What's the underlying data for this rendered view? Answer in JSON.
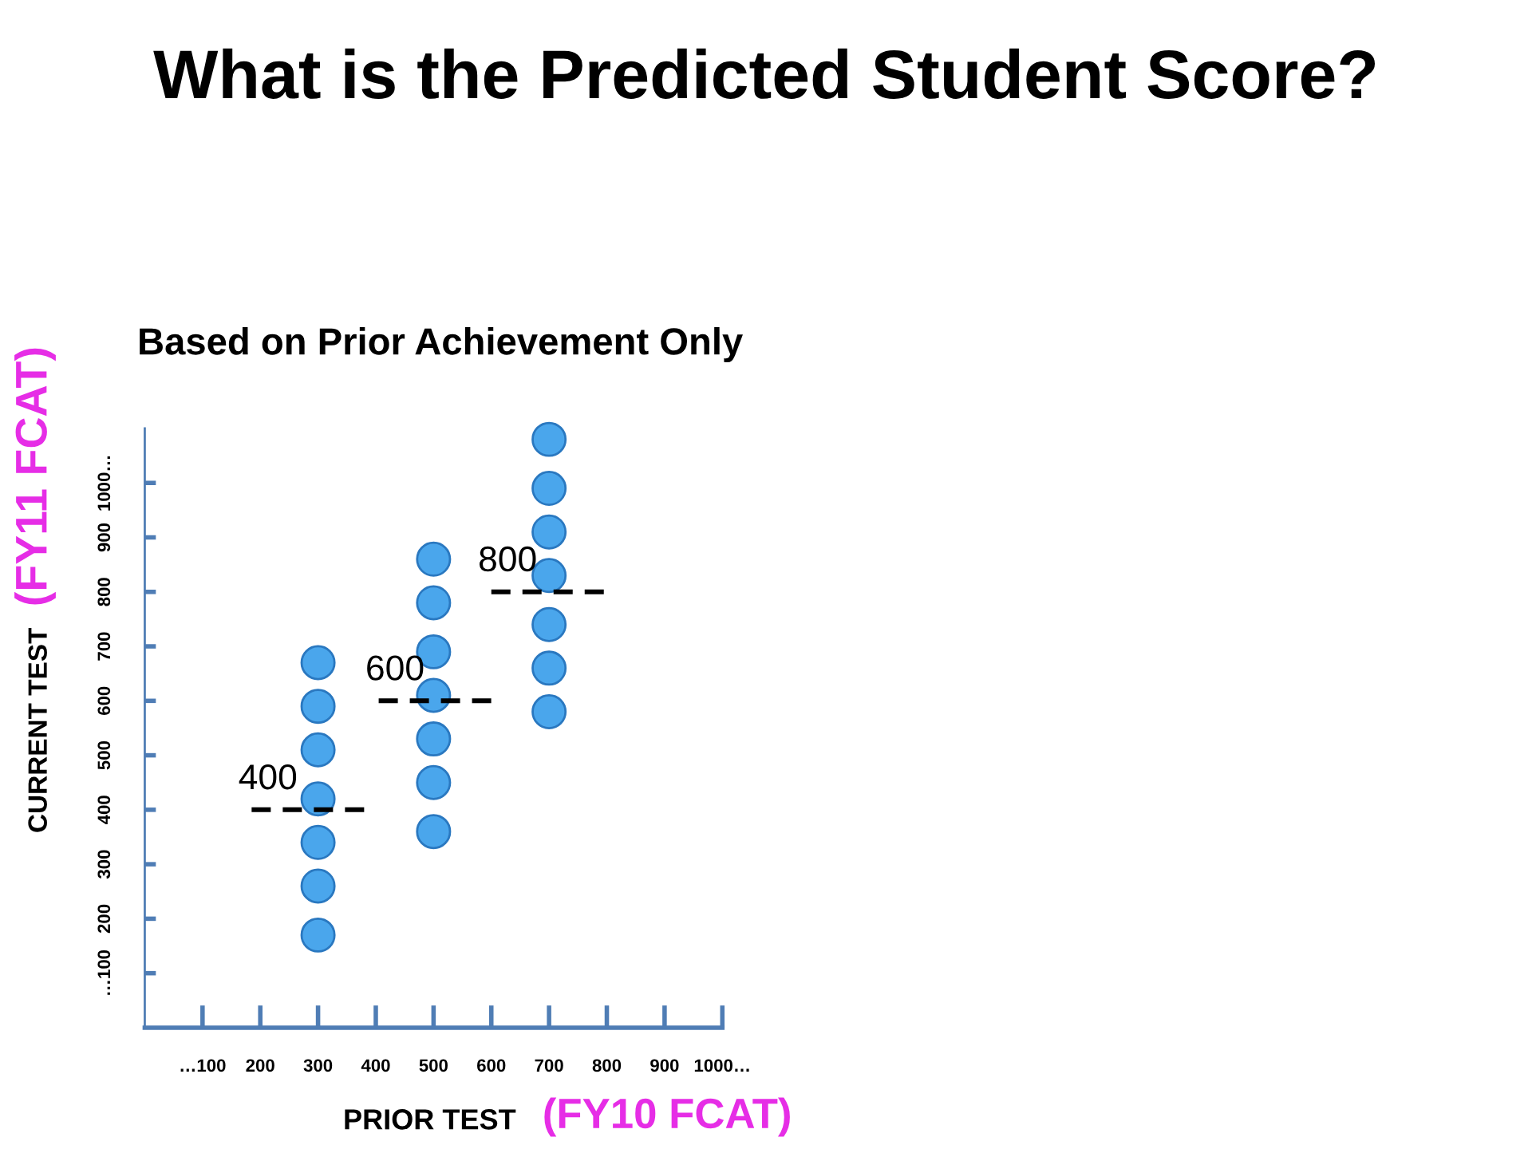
{
  "chart_data": {
    "type": "scatter",
    "title": "What is the Predicted Student Score?",
    "subtitle": "Based on Prior Achievement Only",
    "xlabel": "PRIOR TEST (FY10 FCAT)",
    "ylabel": "CURRENT TEST (FY11 FCAT)",
    "xlim": [
      0,
      1000
    ],
    "ylim": [
      0,
      1100
    ],
    "xticks": [
      {
        "value": 100,
        "label": "…100"
      },
      200,
      300,
      400,
      500,
      600,
      700,
      800,
      900,
      {
        "value": 1000,
        "label": "1000…"
      }
    ],
    "yticks": [
      {
        "value": 100,
        "label": "…100"
      },
      200,
      300,
      400,
      500,
      600,
      700,
      800,
      900,
      {
        "value": 1000,
        "label": "1000…"
      }
    ],
    "series": [
      {
        "color": "#4aa6ec",
        "marker": "circle",
        "x": [
          300,
          300,
          300,
          300,
          300,
          300,
          300,
          500,
          500,
          500,
          500,
          500,
          500,
          500,
          700,
          700,
          700,
          700,
          700,
          700,
          700
        ],
        "values": [
          670,
          590,
          510,
          420,
          340,
          260,
          170,
          860,
          780,
          690,
          610,
          530,
          450,
          360,
          1080,
          990,
          910,
          830,
          740,
          660,
          580
        ]
      },
      {
        "type": "line",
        "color": "#000000",
        "line_style": "dashed",
        "x": [
          185,
          385
        ],
        "values": [
          400,
          400
        ]
      },
      {
        "type": "line",
        "color": "#000000",
        "line_style": "dashed",
        "x": [
          405,
          600
        ],
        "values": [
          600,
          600
        ]
      },
      {
        "type": "line",
        "color": "#000000",
        "line_style": "dashed",
        "x": [
          600,
          800
        ],
        "values": [
          800,
          800
        ]
      }
    ],
    "annotations": [
      {
        "text": "400",
        "x": 185,
        "y": 400
      },
      {
        "text": "600",
        "x": 405,
        "y": 600
      },
      {
        "text": "800",
        "x": 600,
        "y": 800
      }
    ]
  }
}
